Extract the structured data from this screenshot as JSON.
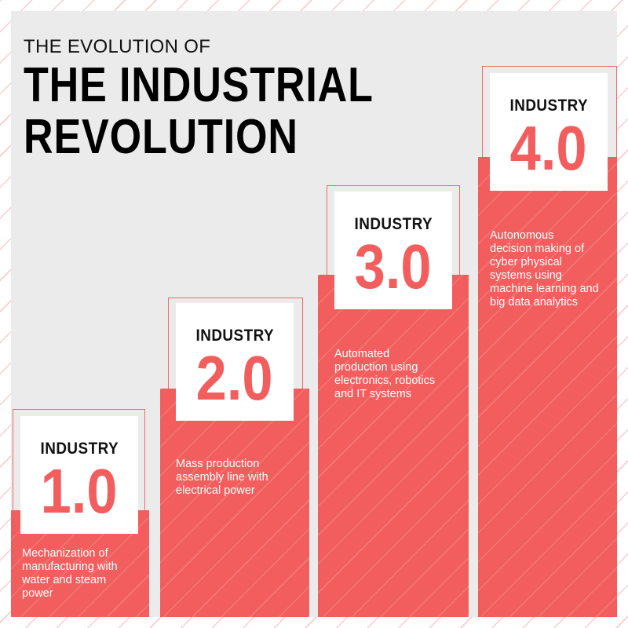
{
  "header": {
    "pretitle": "THE EVOLUTION OF",
    "title_line1": "THE INDUSTRIAL",
    "title_line2": "REVOLUTION"
  },
  "stages": [
    {
      "label": "INDUSTRY",
      "number": "1.0",
      "description": [
        "Mechanization of",
        "manufacturing with",
        "water and steam",
        "power"
      ]
    },
    {
      "label": "INDUSTRY",
      "number": "2.0",
      "description": [
        "Mass production",
        "assembly line with",
        "electrical power"
      ]
    },
    {
      "label": "INDUSTRY",
      "number": "3.0",
      "description": [
        "Automated",
        "production using",
        "electronics, robotics",
        "and IT systems"
      ]
    },
    {
      "label": "INDUSTRY",
      "number": "4.0",
      "description": [
        "Autonomous",
        "decision making of",
        "cyber physical",
        "systems using",
        "machine learning and",
        "big data analytics"
      ]
    }
  ],
  "colors": {
    "accent": "#f25e5e",
    "panel": "#ebebeb",
    "text_dark": "#111111"
  }
}
